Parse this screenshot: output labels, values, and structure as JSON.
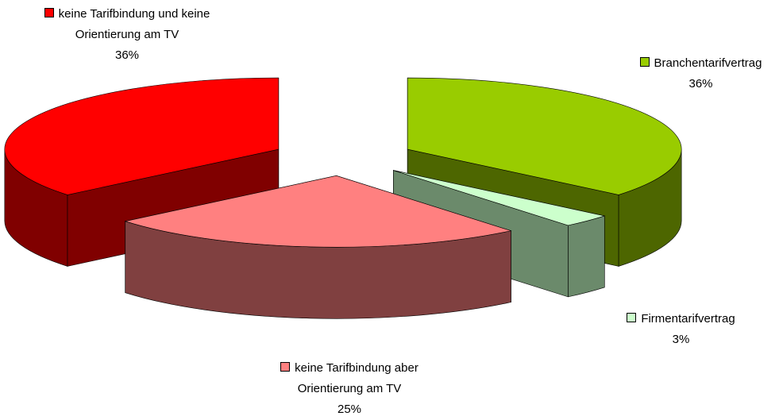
{
  "chart_data": {
    "type": "pie3d",
    "categories": [
      "Branchentarifvertrag",
      "Firmentarifvertrag",
      "keine Tarifbindung aber Orientierung am TV",
      "keine Tarifbindung und keine Orientierung am TV"
    ],
    "values": [
      36,
      3,
      25,
      36
    ],
    "value_labels": [
      "36%",
      "3%",
      "25%",
      "36%"
    ],
    "colors": [
      "#99cc00",
      "#ccffcc",
      "#ff8080",
      "#ff0000"
    ]
  }
}
